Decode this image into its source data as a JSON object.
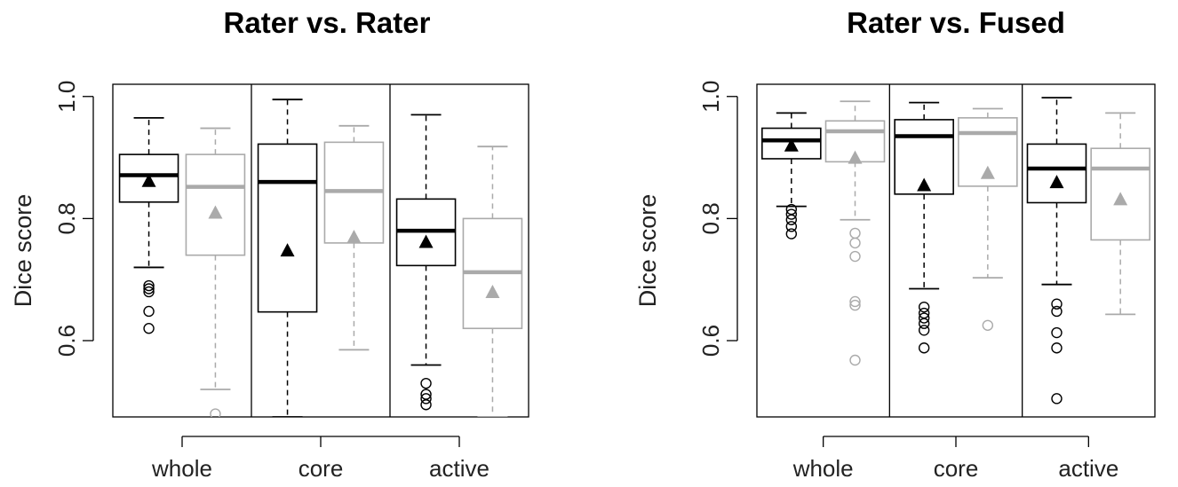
{
  "chart_data": [
    {
      "type": "box",
      "title": "Rater vs. Rater",
      "ylabel": "Dice score",
      "ylim": [
        0.475,
        1.02
      ],
      "yticks": [
        0.6,
        0.8,
        1.0
      ],
      "ytick_labels": [
        "0.6",
        "0.8",
        "1.0"
      ],
      "categories": [
        "whole",
        "core",
        "active"
      ],
      "grid": false,
      "series": [
        {
          "color": "#000000",
          "boxes": [
            {
              "category": "whole",
              "whisker_low": 0.72,
              "q1": 0.827,
              "median": 0.871,
              "q3": 0.905,
              "whisker_high": 0.965,
              "mean": 0.862,
              "outliers": [
                0.69,
                0.685,
                0.68,
                0.648,
                0.62
              ]
            },
            {
              "category": "core",
              "whisker_low": 0.475,
              "q1": 0.647,
              "median": 0.86,
              "q3": 0.922,
              "whisker_high": 0.995,
              "mean": 0.748,
              "outliers": []
            },
            {
              "category": "active",
              "whisker_low": 0.56,
              "q1": 0.723,
              "median": 0.78,
              "q3": 0.832,
              "whisker_high": 0.97,
              "mean": 0.762,
              "outliers": [
                0.53,
                0.512,
                0.505,
                0.495
              ]
            }
          ]
        },
        {
          "color": "#aaaaaa",
          "boxes": [
            {
              "category": "whole",
              "whisker_low": 0.52,
              "q1": 0.74,
              "median": 0.852,
              "q3": 0.905,
              "whisker_high": 0.948,
              "mean": 0.81,
              "outliers": [
                0.48
              ]
            },
            {
              "category": "core",
              "whisker_low": 0.585,
              "q1": 0.76,
              "median": 0.845,
              "q3": 0.925,
              "whisker_high": 0.952,
              "mean": 0.77,
              "outliers": []
            },
            {
              "category": "active",
              "whisker_low": 0.475,
              "q1": 0.62,
              "median": 0.712,
              "q3": 0.8,
              "whisker_high": 0.918,
              "mean": 0.68,
              "outliers": []
            }
          ]
        }
      ]
    },
    {
      "type": "box",
      "title": "Rater vs. Fused",
      "ylabel": "Dice score",
      "ylim": [
        0.475,
        1.02
      ],
      "yticks": [
        0.6,
        0.8,
        1.0
      ],
      "ytick_labels": [
        "0.6",
        "0.8",
        "1.0"
      ],
      "categories": [
        "whole",
        "core",
        "active"
      ],
      "grid": false,
      "series": [
        {
          "color": "#000000",
          "boxes": [
            {
              "category": "whole",
              "whisker_low": 0.82,
              "q1": 0.898,
              "median": 0.928,
              "q3": 0.948,
              "whisker_high": 0.973,
              "mean": 0.92,
              "outliers": [
                0.815,
                0.807,
                0.798,
                0.787,
                0.775
              ]
            },
            {
              "category": "core",
              "whisker_low": 0.685,
              "q1": 0.84,
              "median": 0.935,
              "q3": 0.962,
              "whisker_high": 0.99,
              "mean": 0.855,
              "outliers": [
                0.655,
                0.645,
                0.637,
                0.628,
                0.617,
                0.588
              ]
            },
            {
              "category": "active",
              "whisker_low": 0.692,
              "q1": 0.826,
              "median": 0.882,
              "q3": 0.922,
              "whisker_high": 0.998,
              "mean": 0.86,
              "outliers": [
                0.66,
                0.648,
                0.613,
                0.588,
                0.505
              ]
            }
          ]
        },
        {
          "color": "#aaaaaa",
          "boxes": [
            {
              "category": "whole",
              "whisker_low": 0.798,
              "q1": 0.893,
              "median": 0.943,
              "q3": 0.96,
              "whisker_high": 0.992,
              "mean": 0.9,
              "outliers": [
                0.776,
                0.76,
                0.738,
                0.664,
                0.658,
                0.568
              ]
            },
            {
              "category": "core",
              "whisker_low": 0.703,
              "q1": 0.853,
              "median": 0.94,
              "q3": 0.965,
              "whisker_high": 0.98,
              "mean": 0.875,
              "outliers": [
                0.625
              ]
            },
            {
              "category": "active",
              "whisker_low": 0.643,
              "q1": 0.765,
              "median": 0.882,
              "q3": 0.915,
              "whisker_high": 0.973,
              "mean": 0.832,
              "outliers": []
            }
          ]
        }
      ]
    }
  ]
}
